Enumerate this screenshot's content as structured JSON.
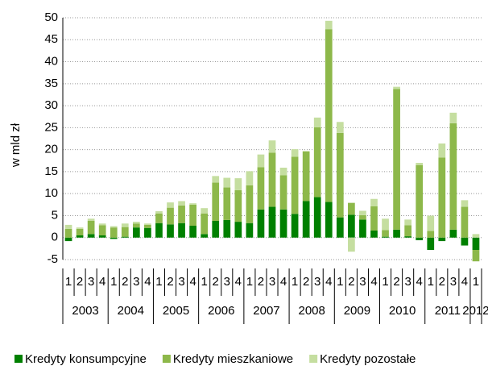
{
  "chart_data": {
    "type": "bar",
    "stacked": true,
    "y_label": "w mld zł",
    "categories": [
      "1",
      "2",
      "3",
      "4",
      "1",
      "2",
      "3",
      "4",
      "1",
      "2",
      "3",
      "4",
      "1",
      "2",
      "3",
      "4",
      "1",
      "2",
      "3",
      "4",
      "1",
      "2",
      "3",
      "4",
      "1",
      "2",
      "3",
      "4",
      "1",
      "2",
      "3",
      "4",
      "1",
      "2",
      "3",
      "4",
      "1"
    ],
    "years": [
      "2003",
      "2004",
      "2005",
      "2006",
      "2007",
      "2008",
      "2009",
      "2010",
      "2011",
      "2012"
    ],
    "series": [
      {
        "name": "Kredyty konsumpcyjne",
        "color": "#008000",
        "values": [
          -0.8,
          0.5,
          0.8,
          0.5,
          -0.3,
          0.2,
          2.3,
          2.2,
          3.3,
          3.0,
          3.3,
          2.7,
          0.8,
          3.8,
          4.0,
          3.6,
          3.3,
          6.4,
          7.0,
          6.4,
          5.4,
          8.3,
          9.2,
          8.1,
          4.6,
          5.2,
          4.1,
          1.6,
          0.2,
          1.8,
          0.3,
          -0.6,
          -2.8,
          -0.8,
          1.8,
          -1.8,
          -2.8
        ]
      },
      {
        "name": "Kredyty mieszkaniowe",
        "color": "#8db84a",
        "values": [
          2.0,
          1.5,
          3.0,
          2.3,
          2.3,
          2.2,
          0.9,
          0.7,
          2.2,
          3.8,
          4.0,
          4.8,
          4.7,
          8.7,
          7.4,
          7.2,
          8.6,
          9.6,
          12.3,
          7.8,
          13.0,
          11.3,
          15.9,
          39.3,
          19.2,
          2.7,
          1.0,
          5.5,
          1.5,
          32.0,
          2.5,
          16.5,
          1.5,
          18.2,
          24.2,
          7.0,
          -2.6
        ]
      },
      {
        "name": "Kredyty pozostałe",
        "color": "#c5dea0",
        "values": [
          0.9,
          0.3,
          0.5,
          0.4,
          0.3,
          0.8,
          0.4,
          0.3,
          0.5,
          1.2,
          1.0,
          0.3,
          1.2,
          1.5,
          2.2,
          2.7,
          3.2,
          2.9,
          2.8,
          1.7,
          1.7,
          0.1,
          2.2,
          1.9,
          2.5,
          -3.2,
          1.0,
          1.7,
          2.6,
          0.5,
          1.3,
          0.5,
          3.5,
          3.2,
          2.4,
          1.5,
          0.8
        ]
      }
    ],
    "ylim": [
      -5,
      50
    ],
    "yticks": [
      -5,
      0,
      5,
      10,
      15,
      20,
      25,
      30,
      35,
      40,
      45,
      50
    ],
    "grid": true
  }
}
